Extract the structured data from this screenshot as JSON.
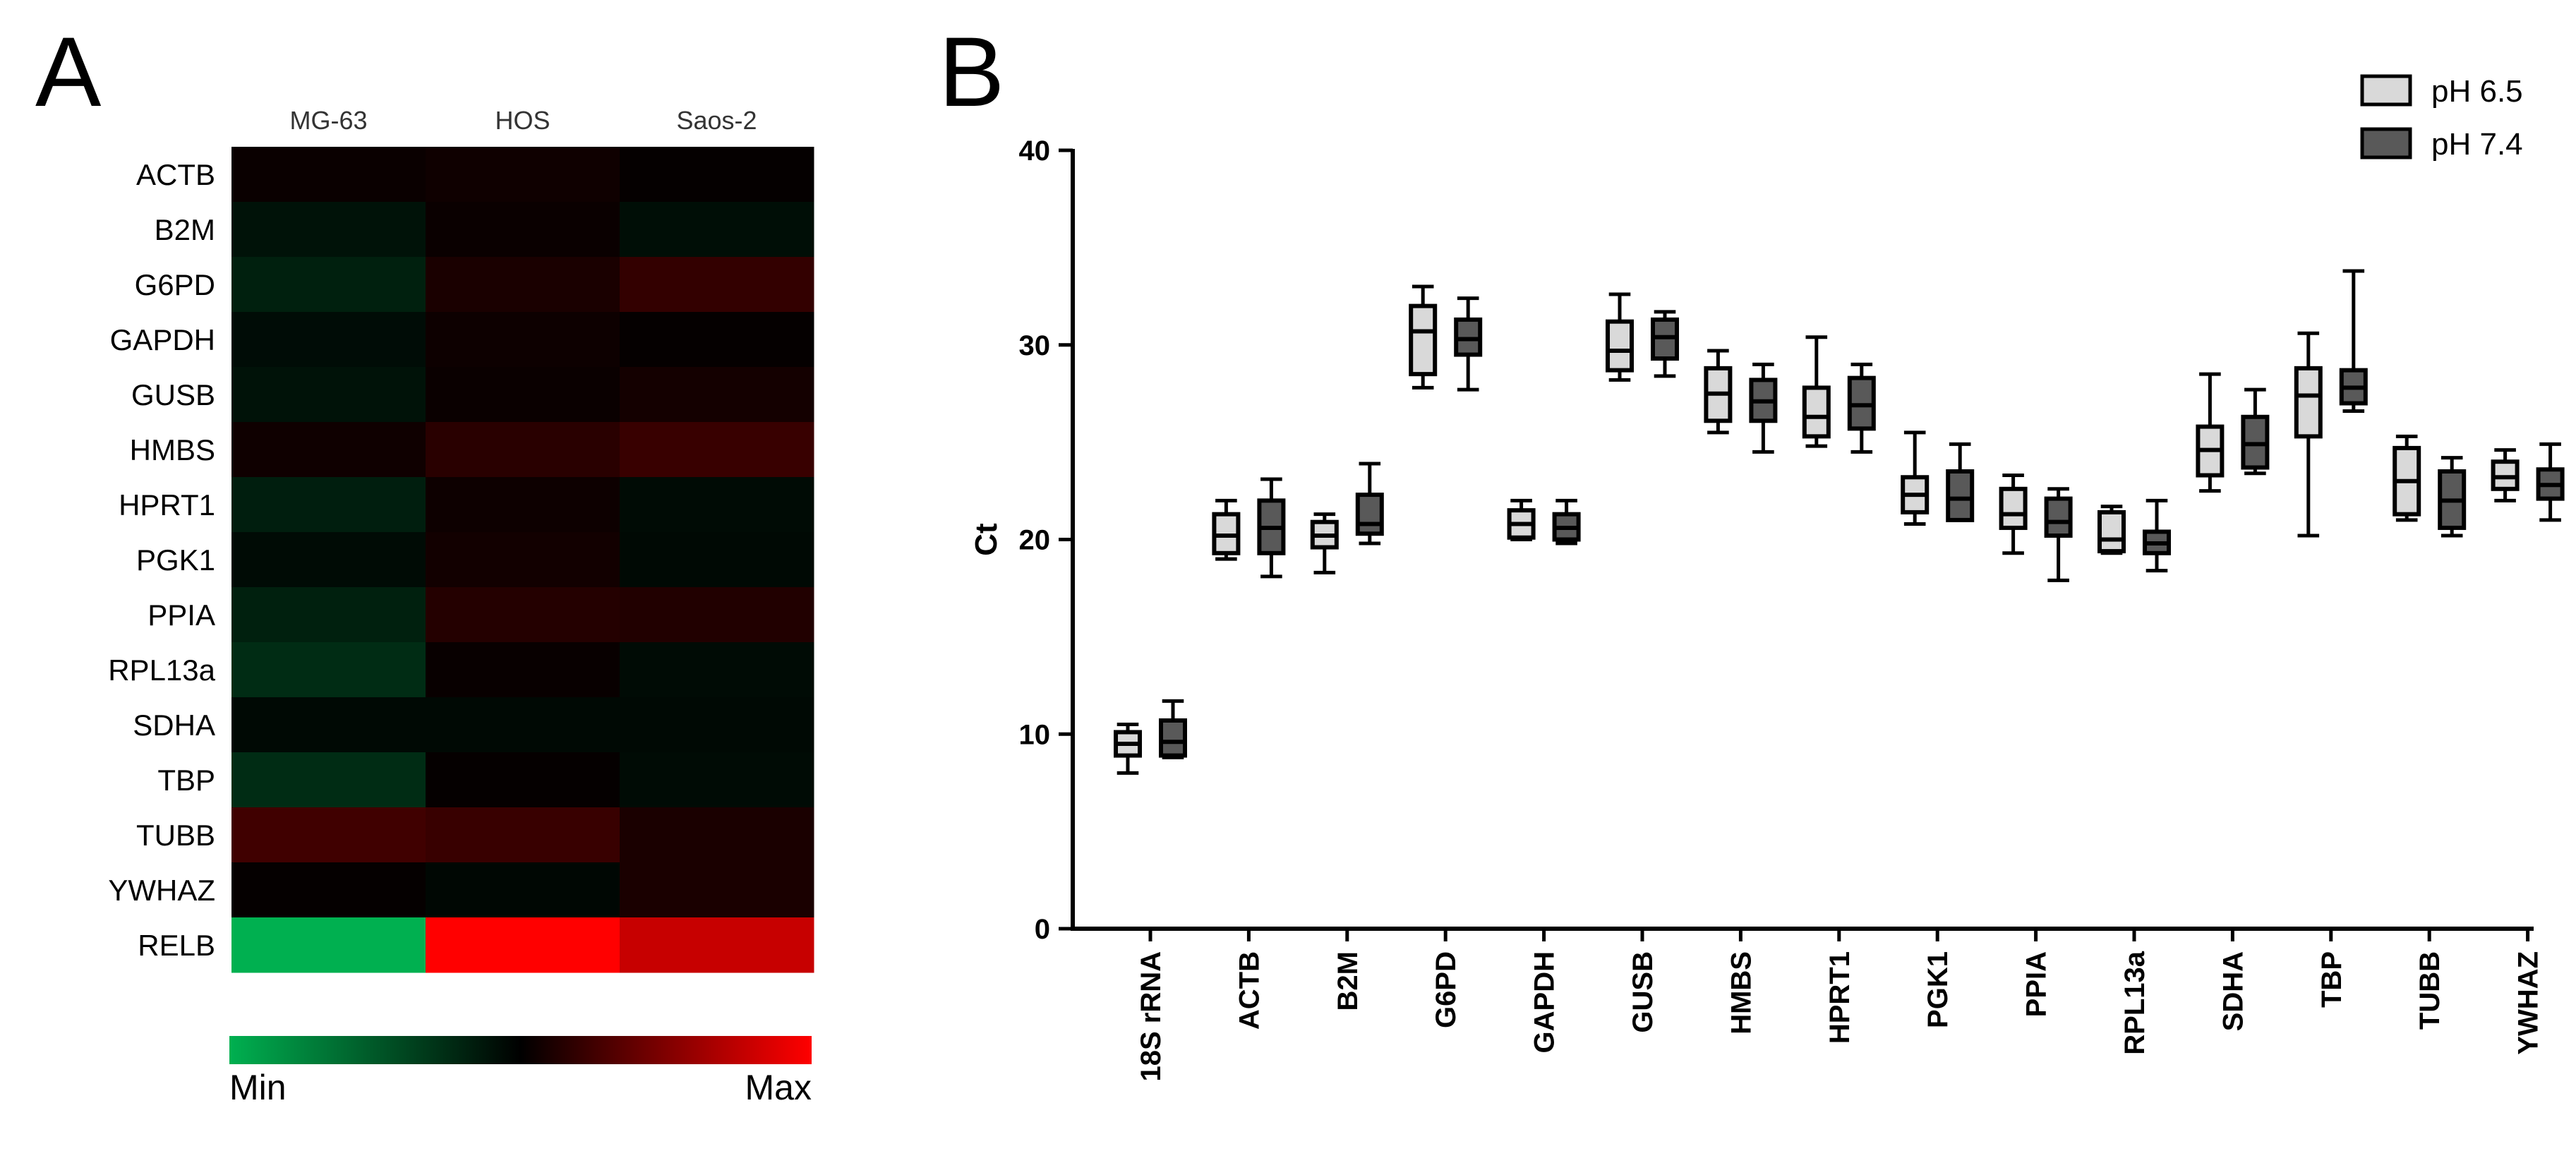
{
  "panelA": {
    "label": "A",
    "columns": [
      "MG-63",
      "HOS",
      "Saos-2"
    ],
    "rows": [
      "ACTB",
      "B2M",
      "G6PD",
      "GAPDH",
      "GUSB",
      "HMBS",
      "HPRT1",
      "PGK1",
      "PPIA",
      "RPL13a",
      "SDHA",
      "TBP",
      "TUBB",
      "YWHAZ",
      "RELB"
    ],
    "legend": {
      "min_label": "Min",
      "max_label": "Max"
    },
    "colors": {
      "min": "#00b050",
      "mid": "#000000",
      "max": "#ff0000"
    }
  },
  "panelB": {
    "label": "B",
    "legend": [
      {
        "name": "pH 6.5",
        "color": "#d9d9d9"
      },
      {
        "name": "pH 7.4",
        "color": "#595959"
      }
    ]
  },
  "chart_data": [
    {
      "type": "heatmap",
      "title": "",
      "x_categories": [
        "MG-63",
        "HOS",
        "Saos-2"
      ],
      "y_categories": [
        "ACTB",
        "B2M",
        "G6PD",
        "GAPDH",
        "GUSB",
        "HMBS",
        "HPRT1",
        "PGK1",
        "PPIA",
        "RPL13a",
        "SDHA",
        "TBP",
        "TUBB",
        "YWHAZ",
        "RELB"
      ],
      "scale": "normalized expression, -1 = Min (green), 0 = black, +1 = Max (red)",
      "values": [
        [
          0.04,
          0.06,
          0.02
        ],
        [
          -0.1,
          0.04,
          -0.08
        ],
        [
          -0.18,
          0.1,
          0.2
        ],
        [
          -0.07,
          0.05,
          0.02
        ],
        [
          -0.1,
          0.04,
          0.08
        ],
        [
          0.06,
          0.16,
          0.22
        ],
        [
          -0.17,
          0.05,
          -0.06
        ],
        [
          -0.06,
          0.07,
          -0.05
        ],
        [
          -0.18,
          0.14,
          0.13
        ],
        [
          -0.25,
          0.03,
          -0.06
        ],
        [
          -0.05,
          -0.05,
          -0.05
        ],
        [
          -0.25,
          0.02,
          -0.06
        ],
        [
          0.25,
          0.22,
          0.1
        ],
        [
          0.02,
          -0.04,
          0.1
        ],
        [
          -1.0,
          1.0,
          0.78
        ]
      ]
    },
    {
      "type": "box",
      "title": "",
      "xlabel": "",
      "ylabel": "Ct",
      "ylim": [
        0,
        40
      ],
      "yticks": [
        0,
        10,
        20,
        30,
        40
      ],
      "categories": [
        "18S rRNA",
        "ACTB",
        "B2M",
        "G6PD",
        "GAPDH",
        "GUSB",
        "HMBS",
        "HPRT1",
        "PGK1",
        "PPIA",
        "RPL13a",
        "SDHA",
        "TBP",
        "TUBB",
        "YWHAZ"
      ],
      "series": [
        {
          "name": "pH 6.5",
          "stats": [
            {
              "min": 8.0,
              "q1": 8.9,
              "median": 9.5,
              "q3": 10.1,
              "max": 10.5
            },
            {
              "min": 19.0,
              "q1": 19.3,
              "median": 20.2,
              "q3": 21.3,
              "max": 22.0
            },
            {
              "min": 18.3,
              "q1": 19.6,
              "median": 20.2,
              "q3": 20.9,
              "max": 21.3
            },
            {
              "min": 27.8,
              "q1": 28.5,
              "median": 30.7,
              "q3": 32.0,
              "max": 33.0
            },
            {
              "min": 20.0,
              "q1": 20.1,
              "median": 20.8,
              "q3": 21.5,
              "max": 22.0
            },
            {
              "min": 28.2,
              "q1": 28.7,
              "median": 29.7,
              "q3": 31.2,
              "max": 32.6
            },
            {
              "min": 25.5,
              "q1": 26.1,
              "median": 27.5,
              "q3": 28.8,
              "max": 29.7
            },
            {
              "min": 24.8,
              "q1": 25.3,
              "median": 26.3,
              "q3": 27.8,
              "max": 30.4
            },
            {
              "min": 20.8,
              "q1": 21.4,
              "median": 22.3,
              "q3": 23.2,
              "max": 25.5
            },
            {
              "min": 19.3,
              "q1": 20.6,
              "median": 21.3,
              "q3": 22.6,
              "max": 23.3
            },
            {
              "min": 19.3,
              "q1": 19.4,
              "median": 20.0,
              "q3": 21.4,
              "max": 21.7
            },
            {
              "min": 22.5,
              "q1": 23.3,
              "median": 24.6,
              "q3": 25.8,
              "max": 28.5
            },
            {
              "min": 20.2,
              "q1": 25.3,
              "median": 27.4,
              "q3": 28.8,
              "max": 30.6
            },
            {
              "min": 21.0,
              "q1": 21.3,
              "median": 23.0,
              "q3": 24.7,
              "max": 25.3
            },
            {
              "min": 22.0,
              "q1": 22.6,
              "median": 23.2,
              "q3": 24.0,
              "max": 24.6
            }
          ]
        },
        {
          "name": "pH 7.4",
          "stats": [
            {
              "min": 8.8,
              "q1": 8.9,
              "median": 9.6,
              "q3": 10.7,
              "max": 11.7
            },
            {
              "min": 18.1,
              "q1": 19.3,
              "median": 20.6,
              "q3": 22.0,
              "max": 23.1
            },
            {
              "min": 19.8,
              "q1": 20.3,
              "median": 20.8,
              "q3": 22.3,
              "max": 23.9
            },
            {
              "min": 27.7,
              "q1": 29.5,
              "median": 30.3,
              "q3": 31.3,
              "max": 32.4
            },
            {
              "min": 19.8,
              "q1": 20.0,
              "median": 20.6,
              "q3": 21.3,
              "max": 22.0
            },
            {
              "min": 28.4,
              "q1": 29.3,
              "median": 30.4,
              "q3": 31.3,
              "max": 31.7
            },
            {
              "min": 24.5,
              "q1": 26.1,
              "median": 27.1,
              "q3": 28.2,
              "max": 29.0
            },
            {
              "min": 24.5,
              "q1": 25.7,
              "median": 26.9,
              "q3": 28.3,
              "max": 29.0
            },
            {
              "min": 21.0,
              "q1": 21.0,
              "median": 22.1,
              "q3": 23.5,
              "max": 24.9
            },
            {
              "min": 17.9,
              "q1": 20.2,
              "median": 20.9,
              "q3": 22.1,
              "max": 22.6
            },
            {
              "min": 18.4,
              "q1": 19.3,
              "median": 19.8,
              "q3": 20.4,
              "max": 22.0
            },
            {
              "min": 23.4,
              "q1": 23.7,
              "median": 24.9,
              "q3": 26.3,
              "max": 27.7
            },
            {
              "min": 26.6,
              "q1": 27.0,
              "median": 27.8,
              "q3": 28.7,
              "max": 33.8
            },
            {
              "min": 20.2,
              "q1": 20.6,
              "median": 22.0,
              "q3": 23.5,
              "max": 24.2
            },
            {
              "min": 21.0,
              "q1": 22.1,
              "median": 22.8,
              "q3": 23.6,
              "max": 24.9
            }
          ]
        }
      ]
    }
  ]
}
